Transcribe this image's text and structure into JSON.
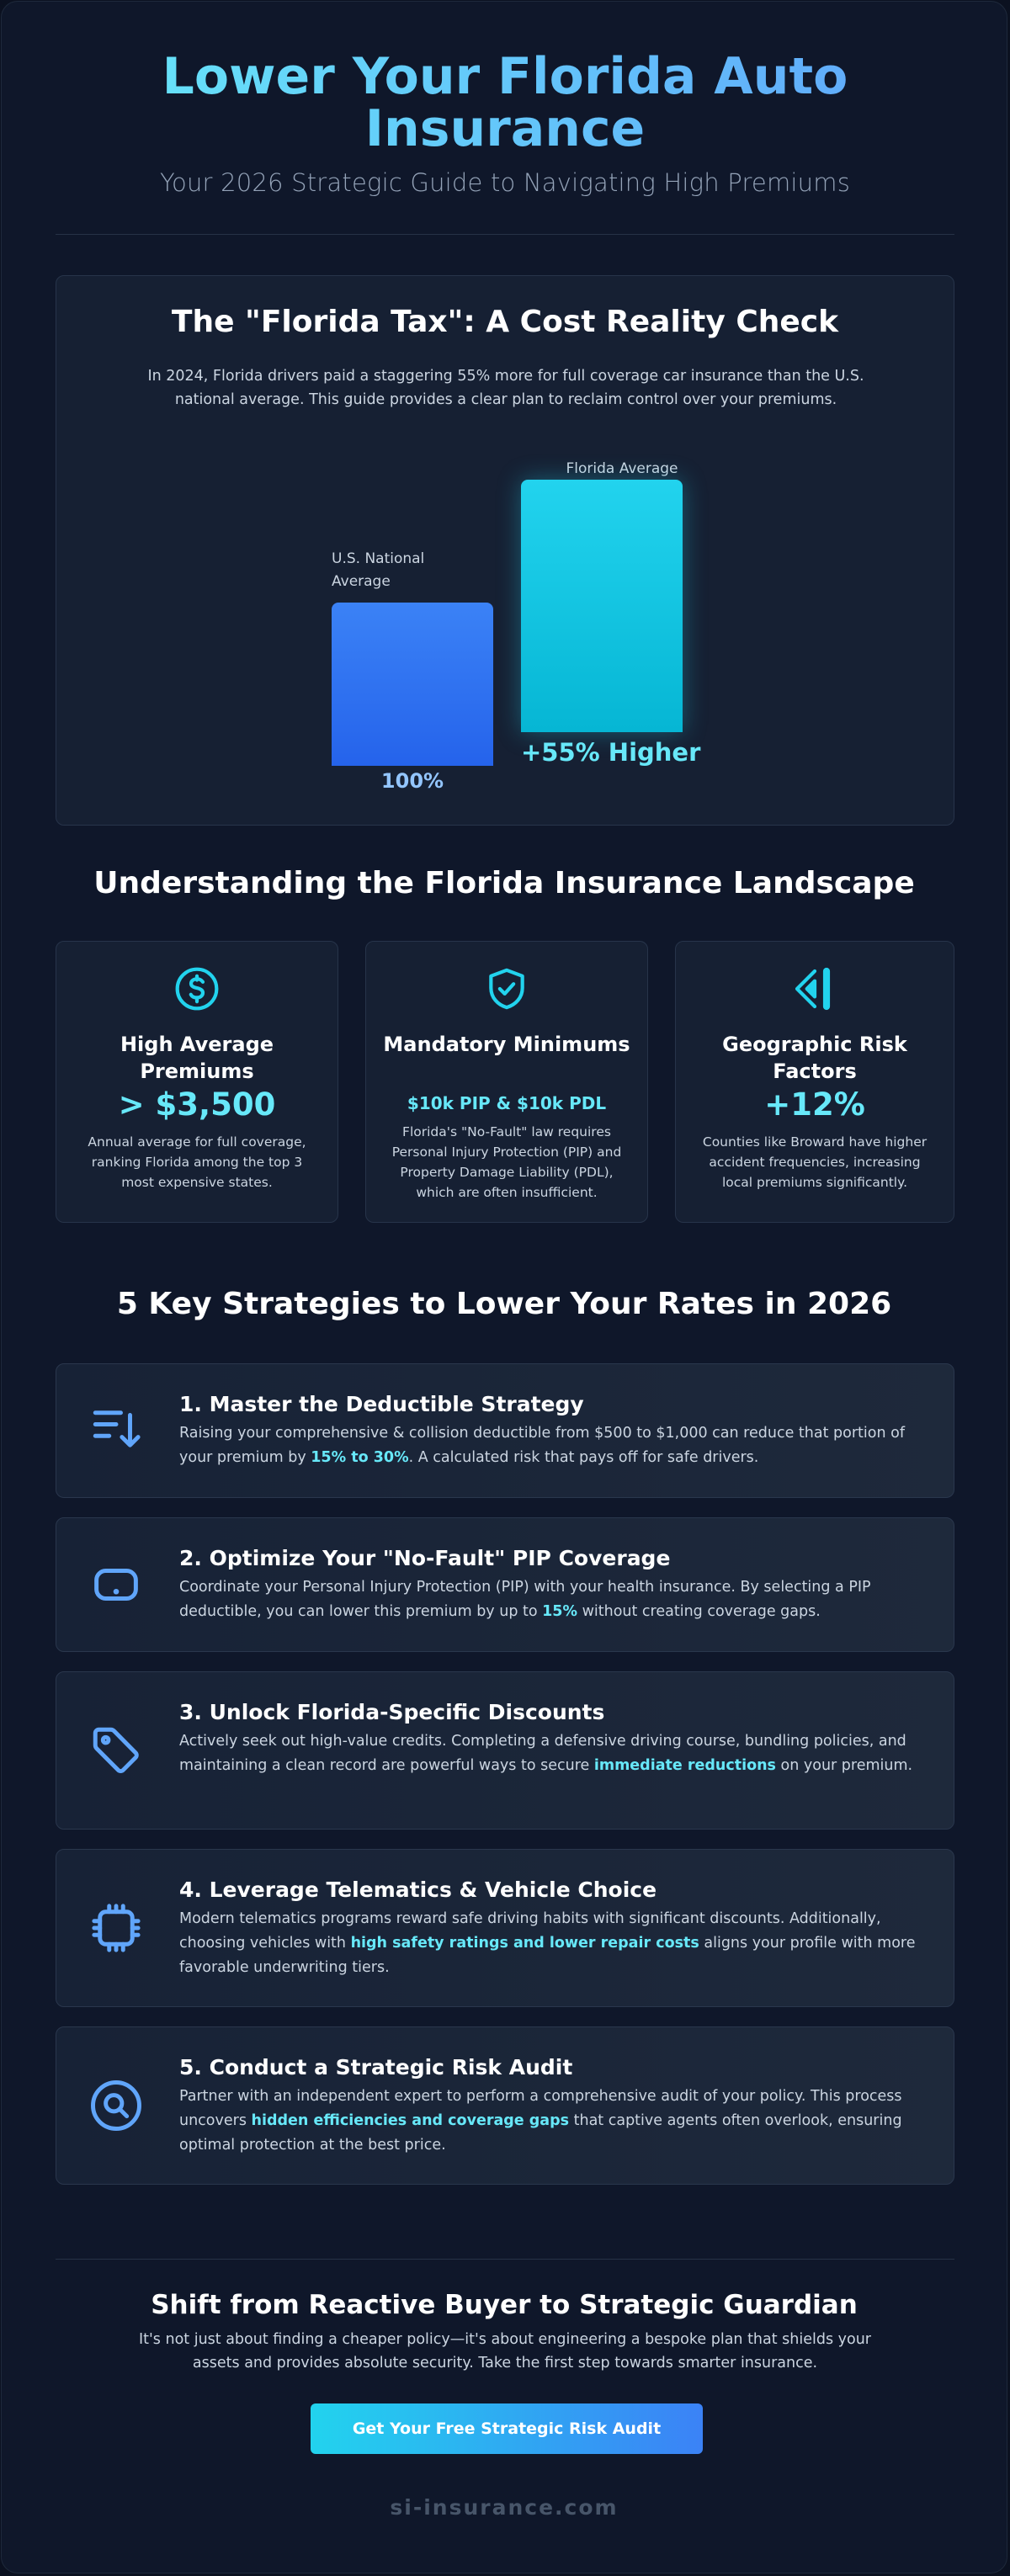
{
  "header": {
    "title": "Lower Your Florida Auto Insurance",
    "subtitle": "Your 2026 Strategic Guide to Navigating High Premiums"
  },
  "cost_check": {
    "title": "The \"Florida Tax\": A Cost Reality Check",
    "intro": "In 2024, Florida drivers paid a staggering 55% more for full coverage car insurance than the U.S. national average. This guide provides a clear plan to reclaim control over your premiums."
  },
  "chart_data": {
    "type": "bar",
    "categories": [
      "U.S. National Average",
      "Florida Average"
    ],
    "values": [
      100,
      155
    ],
    "value_labels": [
      "100%",
      "+55% Higher"
    ],
    "colors": [
      "#3b82f6",
      "#22d3ee"
    ],
    "title": "",
    "xlabel": "",
    "ylabel": "",
    "ylim": [
      0,
      155
    ],
    "grid": false
  },
  "landscape": {
    "title": "Understanding the Florida Insurance Landscape",
    "cards": [
      {
        "icon": "dollar-circle-icon",
        "title": "High Average Premiums",
        "value": "> $3,500",
        "desc": "Annual average for full coverage, ranking Florida among the top 3 most expensive states."
      },
      {
        "icon": "shield-check-icon",
        "title": "Mandatory Minimums",
        "value": "$10k PIP & $10k PDL",
        "desc": "Florida's \"No-Fault\" law requires Personal Injury Protection (PIP) and Property Damage Liability (PDL), which are often insufficient."
      },
      {
        "icon": "navigation-diamond-icon",
        "title": "Geographic Risk Factors",
        "value": "+12%",
        "desc": "Counties like Broward have higher accident frequencies, increasing local premiums significantly."
      }
    ]
  },
  "strategies": {
    "title": "5 Key Strategies to Lower Your Rates in 2026",
    "items": [
      {
        "icon": "sort-descending-icon",
        "title": "1. Master the Deductible Strategy",
        "body_before": "Raising your comprehensive & collision deductible from $500 to $1,000 can reduce that portion of your premium by ",
        "highlight": "15% to 30%",
        "body_after": ". A calculated risk that pays off for safe drivers."
      },
      {
        "icon": "tablet-icon",
        "title": "2. Optimize Your \"No-Fault\" PIP Coverage",
        "body_before": "Coordinate your Personal Injury Protection (PIP) with your health insurance. By selecting a PIP deductible, you can lower this premium by up to ",
        "highlight": "15%",
        "body_after": " without creating coverage gaps."
      },
      {
        "icon": "tag-icon",
        "title": "3. Unlock Florida-Specific Discounts",
        "body_before": "Actively seek out high-value credits. Completing a defensive driving course, bundling policies, and maintaining a clean record are powerful ways to secure ",
        "highlight": "immediate reductions",
        "body_after": " on your premium."
      },
      {
        "icon": "chip-icon",
        "title": "4. Leverage Telematics & Vehicle Choice",
        "body_before": "Modern telematics programs reward safe driving habits with significant discounts. Additionally, choosing vehicles with ",
        "highlight": "high safety ratings and lower repair costs",
        "body_after": " aligns your profile with more favorable underwriting tiers."
      },
      {
        "icon": "search-circle-icon",
        "title": "5. Conduct a Strategic Risk Audit",
        "body_before": "Partner with an independent expert to perform a comprehensive audit of your policy. This process uncovers ",
        "highlight": "hidden efficiencies and coverage gaps",
        "body_after": " that captive agents often overlook, ensuring optimal protection at the best price."
      }
    ]
  },
  "footer": {
    "title": "Shift from Reactive Buyer to Strategic Guardian",
    "text": "It's not just about finding a cheaper policy—it's about engineering a bespoke plan that shields your assets and provides absolute security. Take the first step towards smarter insurance.",
    "cta_label": "Get Your Free Strategic Risk Audit",
    "brand": "si-insurance.com"
  },
  "colors": {
    "accent_cyan": "#67e8f9",
    "accent_blue": "#60a5fa",
    "background": "#0f172a"
  }
}
